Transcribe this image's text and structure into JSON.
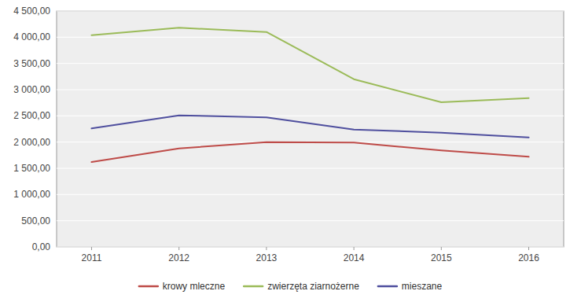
{
  "chart_data": {
    "type": "line",
    "x": [
      2011,
      2012,
      2013,
      2014,
      2015,
      2016
    ],
    "xlim": [
      2010.6,
      2016.4
    ],
    "xticks": [
      2011,
      2012,
      2013,
      2014,
      2015,
      2016
    ],
    "series": [
      {
        "name": "krowy mleczne",
        "color": "#be4b48",
        "values": [
          1620,
          1880,
          2000,
          1990,
          1840,
          1720
        ]
      },
      {
        "name": "zwierzęta ziarnożerne",
        "color": "#9bbb59",
        "values": [
          4040,
          4180,
          4100,
          3200,
          2760,
          2840
        ]
      },
      {
        "name": "mieszane",
        "color": "#4f4f9e",
        "values": [
          2260,
          2510,
          2470,
          2240,
          2180,
          2090
        ]
      }
    ],
    "ylim": [
      0,
      4500
    ],
    "yticks": [
      {
        "value": 0,
        "label": "0,00"
      },
      {
        "value": 500,
        "label": "500,00"
      },
      {
        "value": 1000,
        "label": "1 000,00"
      },
      {
        "value": 1500,
        "label": "1 500,00"
      },
      {
        "value": 2000,
        "label": "2 000,00"
      },
      {
        "value": 2500,
        "label": "2 500,00"
      },
      {
        "value": 3000,
        "label": "3 000,00"
      },
      {
        "value": 3500,
        "label": "3 500,00"
      },
      {
        "value": 4000,
        "label": "4 000,00"
      },
      {
        "value": 4500,
        "label": "4 500,00"
      }
    ],
    "grid": true,
    "legend": "bottom"
  }
}
